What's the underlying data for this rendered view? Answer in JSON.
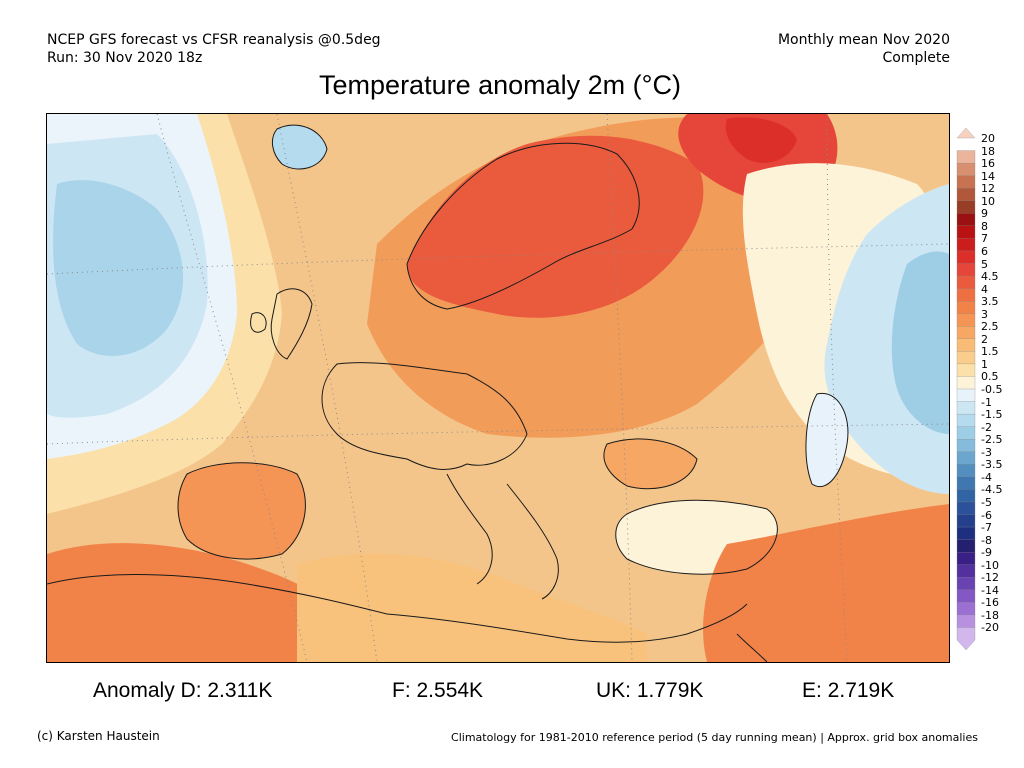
{
  "header": {
    "line1_left": "NCEP GFS forecast vs CFSR reanalysis @0.5deg",
    "line2_left": "Run: 30 Nov 2020 18z",
    "line1_right": "Monthly mean Nov 2020",
    "line2_right": "Complete"
  },
  "title": "Temperature anomaly 2m (°C)",
  "colorbar": {
    "labels": [
      "20",
      "18",
      "16",
      "14",
      "12",
      "10",
      "9",
      "8",
      "7",
      "6",
      "5",
      "4.5",
      "4",
      "3.5",
      "3",
      "2.5",
      "2",
      "1.5",
      "1",
      "0.5",
      "-0.5",
      "-1",
      "-1.5",
      "-2",
      "-2.5",
      "-3",
      "-3.5",
      "-4",
      "-4.5",
      "-5",
      "-6",
      "-7",
      "-8",
      "-9",
      "-10",
      "-12",
      "-14",
      "-16",
      "-18",
      "-20"
    ],
    "colors": [
      "#f7d2c0",
      "#eab59b",
      "#d99070",
      "#c77352",
      "#b1573a",
      "#993e26",
      "#9b1010",
      "#b81212",
      "#cc1d1d",
      "#dc2f2a",
      "#e6453a",
      "#ea5b3e",
      "#ee7042",
      "#f18349",
      "#f49555",
      "#f6a764",
      "#f8bc76",
      "#f9cd8c",
      "#fbe0a9",
      "#fdf3d8",
      "#e7f2fa",
      "#cde6f4",
      "#b5dbee",
      "#9ecde6",
      "#85bcdb",
      "#6aa6cd",
      "#528fbf",
      "#3f78b1",
      "#3164a5",
      "#2a5199",
      "#24408d",
      "#1f2f7f",
      "#251f6f",
      "#3a1f86",
      "#52309e",
      "#6a43b2",
      "#8357c4",
      "#9c6fd3",
      "#b791e0",
      "#d2b7ec"
    ]
  },
  "stats": {
    "anomaly_d": "Anomaly D: 2.311K",
    "f": "F: 2.554K",
    "uk": "UK: 1.779K",
    "e": "E: 2.719K"
  },
  "footer": {
    "left": "(c) Karsten Haustein",
    "right": "Climatology for 1981-2010 reference period (5 day running mean) | Approx. grid box anomalies"
  }
}
